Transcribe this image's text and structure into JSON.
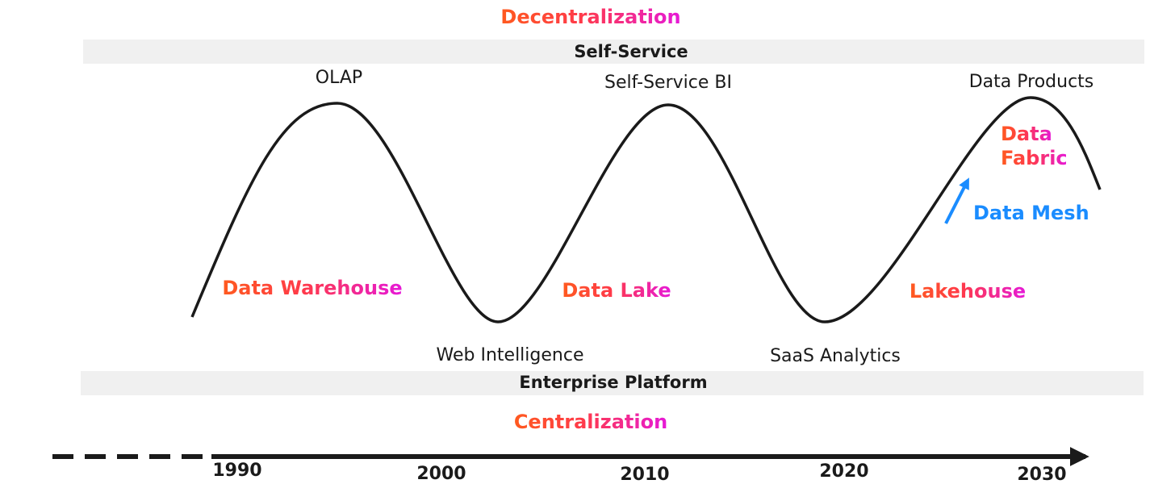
{
  "top_label": "Decentralization",
  "top_band": "Self-Service",
  "bottom_band": "Enterprise Platform",
  "bottom_label": "Centralization",
  "peaks": [
    "OLAP",
    "Self-Service BI",
    "Data Products"
  ],
  "troughs": [
    "Web Intelligence",
    "SaaS Analytics"
  ],
  "eras": [
    "Data Warehouse",
    "Data Lake",
    "Lakehouse"
  ],
  "data_fabric": [
    "Data",
    "Fabric"
  ],
  "data_mesh": "Data Mesh",
  "years": [
    "1990",
    "2000",
    "2010",
    "2020",
    "2030"
  ]
}
